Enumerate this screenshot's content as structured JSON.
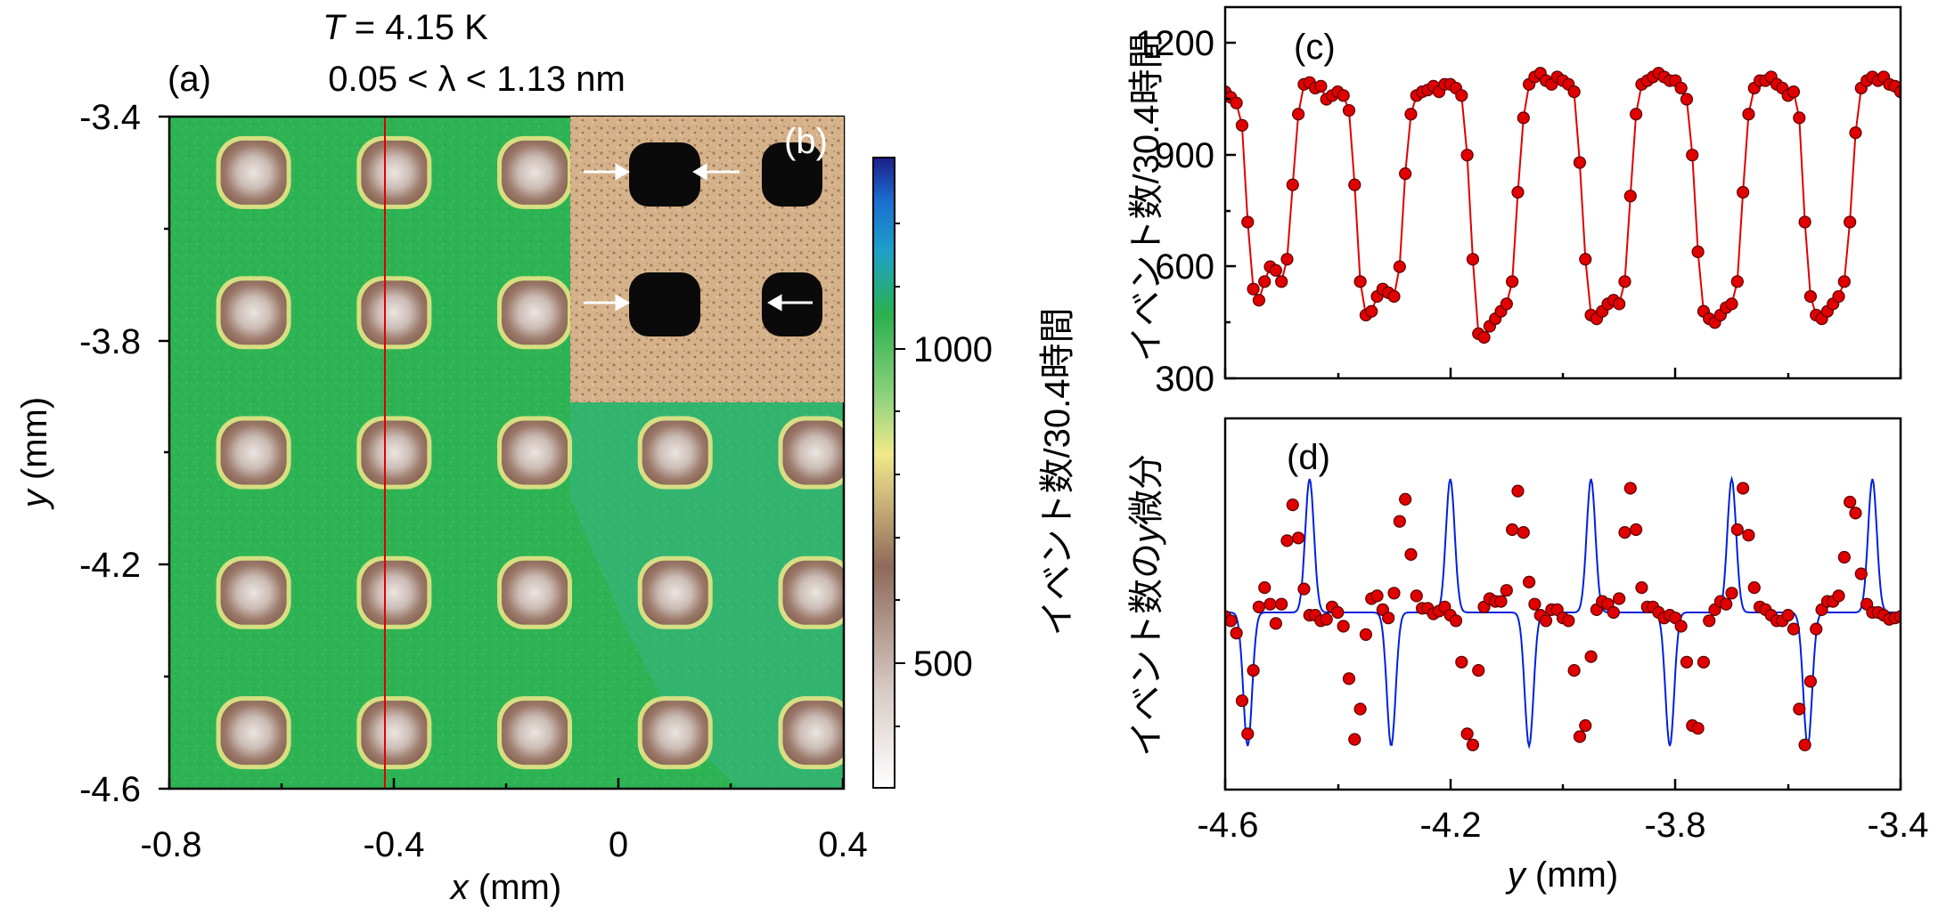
{
  "panel_a": {
    "letter": "(a)",
    "title_line1_var": "T",
    "title_line1_rest": " = 4.15 K",
    "title_line2": "0.05 < λ < 1.13 nm",
    "xlabel_var": "x",
    "xlabel_unit": " (mm)",
    "ylabel_var": "y",
    "ylabel_unit": " (mm)",
    "xticks": [
      "-0.8",
      "-0.4",
      "0",
      "0.4"
    ],
    "yticks": [
      "-3.4",
      "-3.8",
      "-4.2",
      "-4.6"
    ],
    "colorbar_ticks": [
      "1000",
      "500"
    ],
    "colorbar_label": "イベント数/30.4時間",
    "colors": {
      "background": "#2db353",
      "hole": "#9c7a6b",
      "hole_center": "#ddd3cf",
      "ring": "#f5e689",
      "cut_line": "#e00000"
    }
  },
  "panel_b": {
    "letter": "(b)",
    "colors": {
      "background": "#d8b48d",
      "hole": "#0a0a0a",
      "arrow": "#ffffff"
    }
  },
  "panel_c": {
    "letter": "(c)",
    "ylabel": "イベント数/30.4時間",
    "yticks": [
      "1200",
      "900",
      "600",
      "300"
    ],
    "colors": {
      "marker": "#e00000",
      "line": "#e00000"
    }
  },
  "panel_d": {
    "letter": "(d)",
    "ylabel_pre": "イベント数の",
    "ylabel_var": "y",
    "ylabel_post": "微分",
    "colors": {
      "marker": "#e00000",
      "line": "#0020e0"
    }
  },
  "shared_x": {
    "label_var": "y",
    "label_unit": " (mm)",
    "ticks": [
      "-4.6",
      "-4.2",
      "-3.8",
      "-3.4"
    ]
  },
  "chart_data": [
    {
      "type": "heatmap",
      "panel": "(a)",
      "x_range_mm": [
        -0.8,
        0.4
      ],
      "y_range_mm": [
        -4.6,
        -3.4
      ],
      "hole_centers_x_mm": [
        -0.65,
        -0.4,
        -0.15,
        0.1,
        0.35
      ],
      "hole_centers_y_mm": [
        -3.5,
        -3.75,
        -4.0,
        -4.25,
        -4.5
      ],
      "cut_line_x_mm": -0.4,
      "colorbar_ticks": [
        1000,
        500
      ],
      "background_counts": 1150,
      "hole_counts": 650
    },
    {
      "type": "line",
      "panel": "(c)",
      "xlabel": "y (mm)",
      "ylabel": "イベント数/30.4時間",
      "xlim": [
        -4.6,
        -3.4
      ],
      "ylim": [
        300,
        1300
      ],
      "x": [
        -4.6,
        -4.59,
        -4.58,
        -4.57,
        -4.56,
        -4.55,
        -4.54,
        -4.53,
        -4.52,
        -4.51,
        -4.5,
        -4.49,
        -4.48,
        -4.47,
        -4.46,
        -4.45,
        -4.44,
        -4.43,
        -4.42,
        -4.41,
        -4.4,
        -4.39,
        -4.38,
        -4.37,
        -4.36,
        -4.35,
        -4.34,
        -4.33,
        -4.32,
        -4.31,
        -4.3,
        -4.29,
        -4.28,
        -4.27,
        -4.26,
        -4.25,
        -4.24,
        -4.23,
        -4.22,
        -4.21,
        -4.2,
        -4.19,
        -4.18,
        -4.17,
        -4.16,
        -4.15,
        -4.14,
        -4.13,
        -4.12,
        -4.11,
        -4.1,
        -4.09,
        -4.08,
        -4.07,
        -4.06,
        -4.05,
        -4.04,
        -4.03,
        -4.02,
        -4.01,
        -4.0,
        -3.99,
        -3.98,
        -3.97,
        -3.96,
        -3.95,
        -3.94,
        -3.93,
        -3.92,
        -3.91,
        -3.9,
        -3.89,
        -3.88,
        -3.87,
        -3.86,
        -3.85,
        -3.84,
        -3.83,
        -3.82,
        -3.81,
        -3.8,
        -3.79,
        -3.78,
        -3.77,
        -3.76,
        -3.75,
        -3.74,
        -3.73,
        -3.72,
        -3.71,
        -3.7,
        -3.69,
        -3.68,
        -3.67,
        -3.66,
        -3.65,
        -3.64,
        -3.63,
        -3.62,
        -3.61,
        -3.6,
        -3.59,
        -3.58,
        -3.57,
        -3.56,
        -3.55,
        -3.54,
        -3.53,
        -3.52,
        -3.51,
        -3.5,
        -3.49,
        -3.48,
        -3.47,
        -3.46,
        -3.45,
        -3.44,
        -3.43,
        -3.42,
        -3.41,
        -3.4
      ],
      "y": [
        1070,
        1055,
        1040,
        980,
        720,
        540,
        510,
        560,
        600,
        590,
        560,
        620,
        820,
        1010,
        1090,
        1095,
        1080,
        1085,
        1050,
        1060,
        1070,
        1060,
        1020,
        820,
        560,
        470,
        480,
        520,
        540,
        530,
        520,
        600,
        850,
        1010,
        1060,
        1070,
        1075,
        1085,
        1070,
        1090,
        1090,
        1080,
        1060,
        900,
        620,
        420,
        410,
        440,
        460,
        480,
        500,
        560,
        800,
        1000,
        1090,
        1110,
        1120,
        1100,
        1090,
        1110,
        1100,
        1090,
        1070,
        880,
        620,
        470,
        460,
        480,
        500,
        510,
        500,
        560,
        790,
        1010,
        1090,
        1100,
        1110,
        1120,
        1110,
        1100,
        1100,
        1080,
        1050,
        900,
        640,
        480,
        460,
        450,
        470,
        490,
        500,
        560,
        800,
        1010,
        1080,
        1100,
        1100,
        1110,
        1090,
        1080,
        1060,
        1070,
        1000,
        720,
        520,
        470,
        460,
        480,
        500,
        520,
        560,
        720,
        960,
        1080,
        1100,
        1110,
        1100,
        1110,
        1090,
        1085,
        1070
      ]
    },
    {
      "type": "line",
      "panel": "(d)",
      "xlabel": "y (mm)",
      "ylabel": "イベント数のy微分",
      "xlim": [
        -4.6,
        -3.4
      ],
      "note_units": "arbitrary",
      "dip_positions_y_mm": [
        -4.56,
        -4.305,
        -4.06,
        -3.81,
        -3.565
      ],
      "peak_positions_y_mm": [
        -4.45,
        -4.2,
        -3.95,
        -3.7,
        -3.45
      ]
    }
  ]
}
